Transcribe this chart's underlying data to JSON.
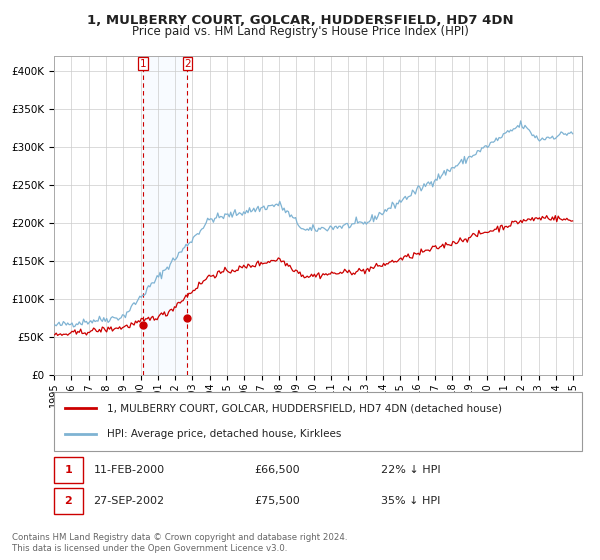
{
  "title": "1, MULBERRY COURT, GOLCAR, HUDDERSFIELD, HD7 4DN",
  "subtitle": "Price paid vs. HM Land Registry's House Price Index (HPI)",
  "legend_entry1": "1, MULBERRY COURT, GOLCAR, HUDDERSFIELD, HD7 4DN (detached house)",
  "legend_entry2": "HPI: Average price, detached house, Kirklees",
  "transaction1_label": "1",
  "transaction1_date": "11-FEB-2000",
  "transaction1_price": 66500,
  "transaction1_pct": "22% ↓ HPI",
  "transaction2_label": "2",
  "transaction2_date": "27-SEP-2002",
  "transaction2_price": 75500,
  "transaction2_pct": "35% ↓ HPI",
  "copyright_text": "Contains HM Land Registry data © Crown copyright and database right 2024.\nThis data is licensed under the Open Government Licence v3.0.",
  "line1_color": "#cc0000",
  "line2_color": "#7fb3d3",
  "marker_color": "#cc0000",
  "vline_color": "#cc0000",
  "shade_color": "#ddeeff",
  "ylim_min": 0,
  "ylim_max": 420000,
  "yticks": [
    0,
    50000,
    100000,
    150000,
    200000,
    250000,
    300000,
    350000,
    400000
  ],
  "ytick_labels": [
    "£0",
    "£50K",
    "£100K",
    "£150K",
    "£200K",
    "£250K",
    "£300K",
    "£350K",
    "£400K"
  ],
  "xmin": 1995,
  "xmax": 2025.5,
  "xticks": [
    1995,
    1996,
    1997,
    1998,
    1999,
    2000,
    2001,
    2002,
    2003,
    2004,
    2005,
    2006,
    2007,
    2008,
    2009,
    2010,
    2011,
    2012,
    2013,
    2014,
    2015,
    2016,
    2017,
    2018,
    2019,
    2020,
    2021,
    2022,
    2023,
    2024,
    2025
  ]
}
